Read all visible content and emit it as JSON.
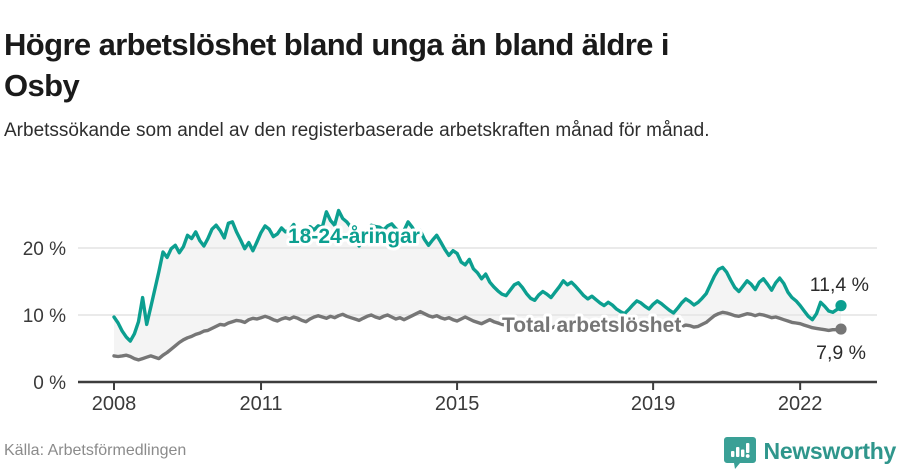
{
  "header": {
    "title_line1": "Högre arbetslöshet bland unga än bland äldre i",
    "title_line2": "Osby",
    "subtitle": "Arbetssökande som andel av den registerbaserade arbetskraften månad för månad."
  },
  "footer": {
    "source": "Källa: Arbetsförmedlingen",
    "brand_name": "Newsworthy"
  },
  "colors": {
    "young": "#0c9f90",
    "total": "#767676",
    "band": "#f4f4f4",
    "grid": "#e4e4e4",
    "axis": "#3d3d3d",
    "brand_text": "#2f968c",
    "brand_icon": "#3aa096"
  },
  "chart_data": {
    "type": "line",
    "title": "Högre arbetslöshet bland unga än bland äldre i Osby",
    "subtitle": "Arbetssökande som andel av den registerbaserade arbetskraften månad för månad.",
    "x_unit": "month",
    "x_start": "2008-01",
    "x_end": "2022-11",
    "ylim": [
      0,
      27
    ],
    "grid": "horizontal",
    "legend_position": "inline-labels",
    "y_ticks": [
      {
        "label": "0 %",
        "value": 0
      },
      {
        "label": "10 %",
        "value": 10
      },
      {
        "label": "20 %",
        "value": 20
      }
    ],
    "x_ticks": [
      {
        "label": "2008",
        "year": 2008
      },
      {
        "label": "2011",
        "year": 2011
      },
      {
        "label": "2015",
        "year": 2015
      },
      {
        "label": "2019",
        "year": 2019
      },
      {
        "label": "2022",
        "year": 2022
      }
    ],
    "series": [
      {
        "name": "18-24-åringar",
        "color": "#0c9f90",
        "end_label": "11,4 %",
        "end_value": 11.4,
        "values": [
          9.7,
          8.8,
          7.6,
          6.7,
          6.1,
          7.2,
          9.0,
          12.6,
          8.6,
          11.2,
          13.8,
          16.5,
          19.4,
          18.6,
          19.9,
          20.4,
          19.3,
          20.2,
          21.9,
          21.4,
          22.4,
          21.1,
          20.3,
          21.4,
          22.8,
          23.4,
          22.6,
          21.5,
          23.7,
          23.9,
          22.4,
          21.2,
          19.9,
          20.8,
          19.6,
          20.9,
          22.3,
          23.3,
          22.8,
          21.7,
          22.1,
          23.0,
          22.4,
          22.7,
          23.5,
          22.2,
          21.2,
          22.0,
          23.2,
          22.7,
          23.3,
          23.1,
          25.4,
          24.1,
          23.4,
          25.6,
          24.4,
          23.9,
          23.1,
          21.9,
          20.3,
          21.1,
          22.5,
          23.4,
          23.2,
          23.1,
          22.7,
          23.3,
          23.6,
          22.9,
          22.4,
          22.6,
          23.9,
          23.1,
          22.1,
          22.6,
          21.3,
          20.4,
          21.2,
          21.9,
          20.9,
          19.8,
          18.9,
          19.6,
          19.2,
          17.9,
          17.5,
          18.3,
          16.9,
          16.3,
          15.4,
          16.1,
          14.9,
          14.2,
          13.6,
          13.1,
          12.9,
          13.7,
          14.5,
          14.8,
          14.1,
          13.2,
          12.5,
          12.2,
          13.0,
          13.5,
          13.1,
          12.6,
          13.4,
          14.2,
          15.1,
          14.5,
          14.9,
          14.3,
          13.6,
          12.9,
          12.4,
          12.8,
          12.3,
          11.8,
          11.4,
          11.9,
          11.5,
          10.9,
          10.5,
          10.2,
          10.8,
          11.5,
          12.1,
          11.8,
          11.3,
          10.9,
          11.6,
          12.1,
          11.7,
          11.2,
          10.7,
          10.3,
          11.0,
          11.8,
          12.4,
          12.0,
          11.5,
          11.9,
          12.5,
          13.2,
          14.5,
          15.8,
          16.8,
          17.1,
          16.4,
          15.2,
          14.1,
          13.5,
          14.3,
          15.1,
          14.6,
          13.8,
          14.9,
          15.4,
          14.6,
          13.7,
          14.8,
          15.5,
          14.7,
          13.4,
          12.6,
          12.1,
          11.4,
          10.6,
          9.8,
          9.3,
          10.2,
          11.9,
          11.3,
          10.6,
          10.4,
          10.8,
          11.4
        ]
      },
      {
        "name": "Total arbetslöshet",
        "color": "#767676",
        "end_label": "7,9 %",
        "end_value": 7.9,
        "values": [
          3.9,
          3.8,
          3.9,
          4.0,
          3.8,
          3.5,
          3.3,
          3.5,
          3.7,
          3.9,
          3.7,
          3.5,
          4.0,
          4.4,
          4.9,
          5.4,
          5.9,
          6.3,
          6.6,
          6.8,
          7.1,
          7.3,
          7.6,
          7.7,
          8.0,
          8.3,
          8.6,
          8.5,
          8.8,
          9.0,
          9.2,
          9.1,
          8.9,
          9.3,
          9.5,
          9.4,
          9.6,
          9.8,
          9.6,
          9.3,
          9.1,
          9.4,
          9.6,
          9.4,
          9.7,
          9.5,
          9.2,
          9.0,
          9.4,
          9.7,
          9.9,
          9.7,
          9.5,
          9.8,
          9.6,
          9.9,
          10.1,
          9.8,
          9.6,
          9.4,
          9.2,
          9.5,
          9.8,
          10.0,
          9.7,
          9.5,
          9.8,
          10.0,
          9.7,
          9.4,
          9.6,
          9.3,
          9.6,
          9.9,
          10.2,
          10.5,
          10.2,
          9.9,
          9.7,
          9.9,
          9.6,
          9.4,
          9.6,
          9.3,
          9.1,
          9.4,
          9.7,
          9.4,
          9.1,
          8.9,
          8.7,
          9.0,
          9.3,
          9.0,
          8.8,
          8.6,
          8.5,
          8.8,
          9.0,
          8.8,
          8.5,
          8.3,
          8.1,
          8.3,
          8.6,
          8.4,
          8.2,
          8.0,
          8.3,
          8.5,
          8.7,
          8.5,
          8.3,
          8.1,
          7.9,
          8.1,
          8.4,
          8.2,
          8.0,
          7.9,
          8.1,
          8.3,
          8.1,
          7.9,
          7.7,
          7.6,
          7.8,
          8.0,
          8.2,
          8.0,
          7.9,
          7.7,
          8.0,
          8.2,
          8.4,
          8.2,
          8.0,
          7.9,
          8.1,
          8.3,
          8.5,
          8.4,
          8.2,
          8.3,
          8.6,
          8.9,
          9.4,
          9.9,
          10.2,
          10.4,
          10.3,
          10.1,
          9.9,
          9.8,
          10.0,
          10.2,
          10.1,
          9.9,
          10.1,
          10.0,
          9.8,
          9.6,
          9.7,
          9.5,
          9.3,
          9.1,
          8.9,
          8.8,
          8.7,
          8.5,
          8.3,
          8.1,
          8.0,
          7.9,
          7.8,
          7.7,
          7.8,
          7.8,
          7.9
        ]
      }
    ]
  }
}
